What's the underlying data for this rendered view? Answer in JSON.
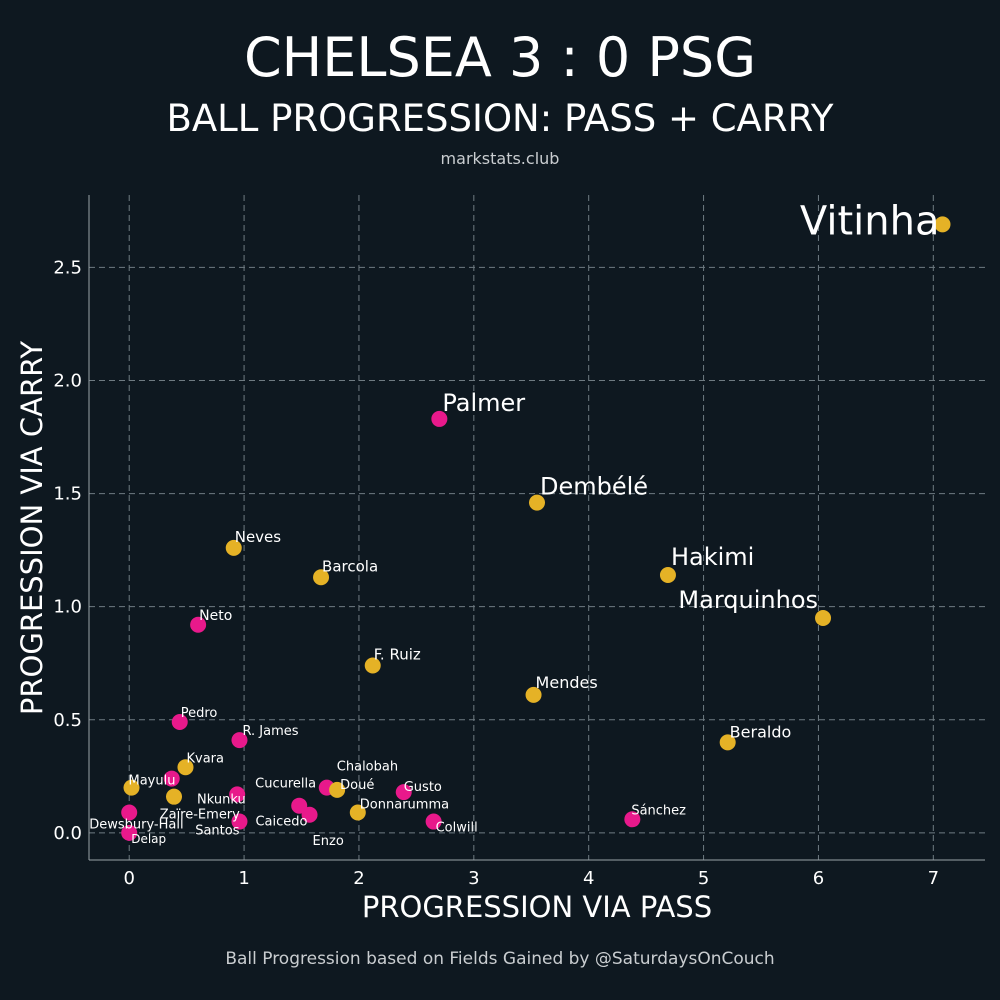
{
  "chart_data": {
    "type": "scatter",
    "title": "CHELSEA 3 : 0 PSG",
    "subtitle": "BALL PROGRESSION: PASS + CARRY",
    "source": "markstats.club",
    "caption": "Ball Progression based on Fields Gained by @SaturdaysOnCouch",
    "xlabel": "PROGRESSION VIA PASS",
    "ylabel": "PROGRESSION VIA CARRY",
    "xlim": [
      -0.35,
      7.45
    ],
    "ylim": [
      -0.12,
      2.82
    ],
    "xticks": [
      0,
      1,
      2,
      3,
      4,
      5,
      6,
      7
    ],
    "yticks": [
      0.0,
      0.5,
      1.0,
      1.5,
      2.0,
      2.5
    ],
    "ytick_labels": [
      "0.0",
      "0.5",
      "1.0",
      "1.5",
      "2.0",
      "2.5"
    ],
    "grid": true,
    "colors": {
      "background": "#0e1820",
      "chelsea": "#e8198b",
      "psg": "#e5b226",
      "grid": "#6f7b82",
      "text": "#ffffff",
      "muted": "#c9cdd0"
    },
    "points": [
      {
        "name": "Vitinha",
        "team": "psg",
        "x": 7.08,
        "y": 2.69
      },
      {
        "name": "Palmer",
        "team": "chelsea",
        "x": 2.7,
        "y": 1.83
      },
      {
        "name": "Dembélé",
        "team": "psg",
        "x": 3.55,
        "y": 1.46
      },
      {
        "name": "Hakimi",
        "team": "psg",
        "x": 4.69,
        "y": 1.14
      },
      {
        "name": "Marquinhos",
        "team": "psg",
        "x": 6.04,
        "y": 0.95
      },
      {
        "name": "Neves",
        "team": "psg",
        "x": 0.91,
        "y": 1.26
      },
      {
        "name": "Barcola",
        "team": "psg",
        "x": 1.67,
        "y": 1.13
      },
      {
        "name": "Neto",
        "team": "chelsea",
        "x": 0.6,
        "y": 0.92
      },
      {
        "name": "F. Ruiz",
        "team": "psg",
        "x": 2.12,
        "y": 0.74
      },
      {
        "name": "Mendes",
        "team": "psg",
        "x": 3.52,
        "y": 0.61
      },
      {
        "name": "Beraldo",
        "team": "psg",
        "x": 5.21,
        "y": 0.4
      },
      {
        "name": "Pedro",
        "team": "chelsea",
        "x": 0.44,
        "y": 0.49
      },
      {
        "name": "R. James",
        "team": "chelsea",
        "x": 0.96,
        "y": 0.41
      },
      {
        "name": "Kvara",
        "team": "psg",
        "x": 0.49,
        "y": 0.29
      },
      {
        "name": "Mayulu",
        "team": "psg",
        "x": 0.02,
        "y": 0.2
      },
      {
        "name": "Chalobah",
        "team": "chelsea",
        "x": 1.72,
        "y": 0.2
      },
      {
        "name": "Doué",
        "team": "psg",
        "x": 1.81,
        "y": 0.19
      },
      {
        "name": "Gusto",
        "team": "chelsea",
        "x": 2.39,
        "y": 0.18
      },
      {
        "name": "Cucurella",
        "team": "chelsea",
        "x": 0.94,
        "y": 0.17
      },
      {
        "name": "Nkunku",
        "team": "psg",
        "x": 0.39,
        "y": 0.16
      },
      {
        "name": "Donnarumma",
        "team": "psg",
        "x": 1.99,
        "y": 0.09
      },
      {
        "name": "Zaïre-Emery",
        "team": "chelsea",
        "x": 0.37,
        "y": 0.24
      },
      {
        "name": "Caicedo",
        "team": "chelsea",
        "x": 0.96,
        "y": 0.05
      },
      {
        "name": "Enzo",
        "team": "chelsea",
        "x": 1.57,
        "y": 0.08
      },
      {
        "name": "Santos",
        "team": "chelsea",
        "x": 1.48,
        "y": 0.12
      },
      {
        "name": "Colwill",
        "team": "chelsea",
        "x": 2.65,
        "y": 0.05
      },
      {
        "name": "Sánchez",
        "team": "chelsea",
        "x": 4.38,
        "y": 0.06
      },
      {
        "name": "Dewsbury-Hall",
        "team": "chelsea",
        "x": 0.0,
        "y": 0.09
      },
      {
        "name": "Delap",
        "team": "chelsea",
        "x": 0.0,
        "y": 0.0
      }
    ]
  }
}
